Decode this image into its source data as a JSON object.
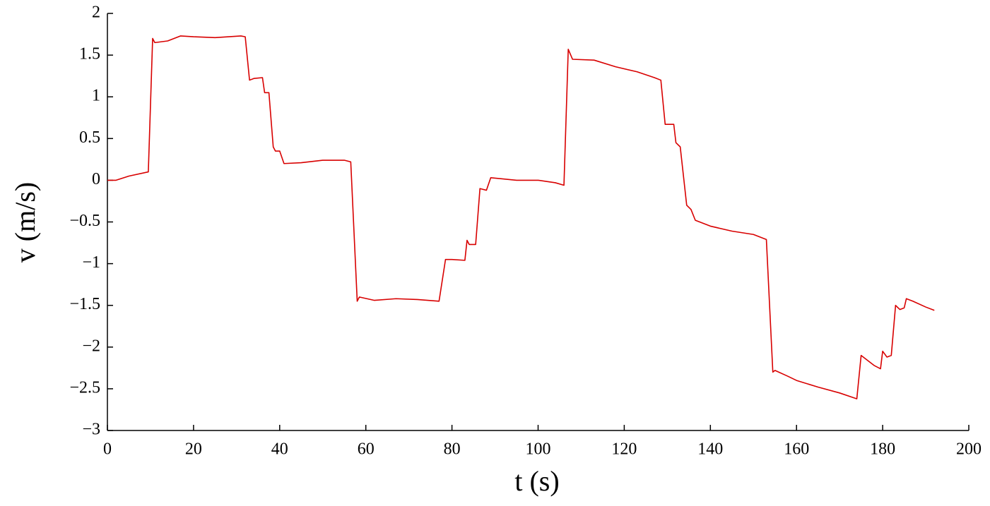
{
  "chart_data": {
    "type": "line",
    "xlabel": "t (s)",
    "ylabel": "v (m/s)",
    "color": "#d80000",
    "xlim": [
      0,
      200
    ],
    "xticks": [
      0,
      20,
      40,
      60,
      80,
      100,
      120,
      140,
      160,
      180,
      200
    ],
    "ylim": [
      -3,
      2
    ],
    "yticks": [
      {
        "value": -3,
        "label": "−3"
      },
      {
        "value": -2.5,
        "label": "−2.5"
      },
      {
        "value": -2,
        "label": "−2"
      },
      {
        "value": -1.5,
        "label": "−1.5"
      },
      {
        "value": -1,
        "label": "−1"
      },
      {
        "value": -0.5,
        "label": "−0.5"
      },
      0,
      0.5,
      1,
      1.5,
      2
    ],
    "x": [
      0,
      2,
      5,
      9.5,
      10.5,
      11,
      14,
      17,
      20,
      25,
      31,
      32,
      33,
      34,
      36,
      36.5,
      37.5,
      38.5,
      39,
      40,
      41,
      45,
      50,
      55,
      56.5,
      58,
      58.5,
      62,
      67,
      72,
      77,
      78.5,
      80,
      83,
      83.5,
      84,
      85.5,
      86.5,
      88,
      89,
      95,
      100,
      104,
      106,
      107,
      108,
      113,
      118,
      123,
      127,
      128.5,
      129.5,
      131.5,
      132,
      133,
      134.5,
      135.5,
      136.5,
      140,
      145,
      150,
      153,
      154.5,
      155,
      158,
      160,
      165,
      170,
      174,
      175,
      178,
      179.5,
      180,
      181,
      182,
      183,
      184,
      185,
      185.5,
      187,
      190,
      192
    ],
    "values": [
      0,
      0,
      0.05,
      0.1,
      1.7,
      1.65,
      1.67,
      1.73,
      1.72,
      1.71,
      1.73,
      1.72,
      1.2,
      1.22,
      1.23,
      1.05,
      1.05,
      0.4,
      0.35,
      0.35,
      0.2,
      0.21,
      0.24,
      0.24,
      0.22,
      -1.45,
      -1.4,
      -1.44,
      -1.42,
      -1.43,
      -1.45,
      -0.95,
      -0.95,
      -0.96,
      -0.72,
      -0.77,
      -0.77,
      -0.1,
      -0.12,
      0.03,
      0.0,
      0.0,
      -0.03,
      -0.06,
      1.57,
      1.45,
      1.44,
      1.36,
      1.3,
      1.23,
      1.2,
      0.67,
      0.67,
      0.45,
      0.4,
      -0.3,
      -0.35,
      -0.48,
      -0.55,
      -0.61,
      -0.65,
      -0.71,
      -2.3,
      -2.28,
      -2.35,
      -2.4,
      -2.48,
      -2.55,
      -2.62,
      -2.1,
      -2.22,
      -2.26,
      -2.05,
      -2.12,
      -2.1,
      -1.5,
      -1.55,
      -1.53,
      -1.42,
      -1.45,
      -1.52,
      -1.56
    ]
  }
}
